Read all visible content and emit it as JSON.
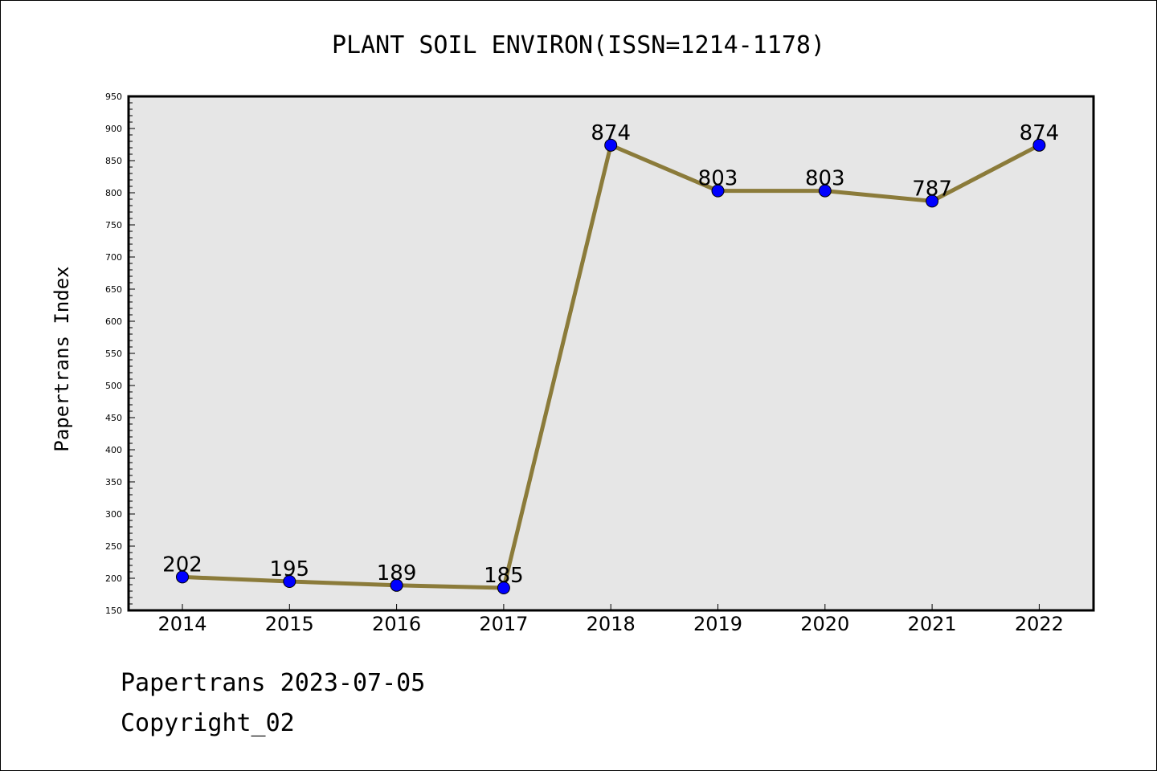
{
  "chart_data": {
    "type": "line",
    "title": "PLANT SOIL ENVIRON(ISSN=1214-1178)",
    "xlabel": "",
    "ylabel": "Papertrans Index",
    "categories": [
      "2014",
      "2015",
      "2016",
      "2017",
      "2018",
      "2019",
      "2020",
      "2021",
      "2022"
    ],
    "series": [
      {
        "values": [
          202,
          195,
          189,
          185,
          874,
          803,
          803,
          787,
          874
        ]
      }
    ],
    "data_labels": [
      "202",
      "195",
      "189",
      "185",
      "874",
      "803",
      "803",
      "787",
      "874"
    ],
    "ylim": [
      150,
      950
    ],
    "yticks": [
      150,
      200,
      250,
      300,
      350,
      400,
      450,
      500,
      550,
      600,
      650,
      700,
      750,
      800,
      850,
      900,
      950
    ],
    "ytick_labels": [
      "150",
      "200",
      "250",
      "300",
      "350",
      "400",
      "450",
      "500",
      "550",
      "600",
      "650",
      "700",
      "750",
      "800",
      "850",
      "900",
      "950"
    ],
    "grid": false,
    "line_color": "#8B7B3A",
    "marker_color": "#0000FF",
    "plot_background": "#E6E6E6"
  },
  "footer": {
    "line1": "Papertrans 2023-07-05",
    "line2": "Copyright_02"
  }
}
